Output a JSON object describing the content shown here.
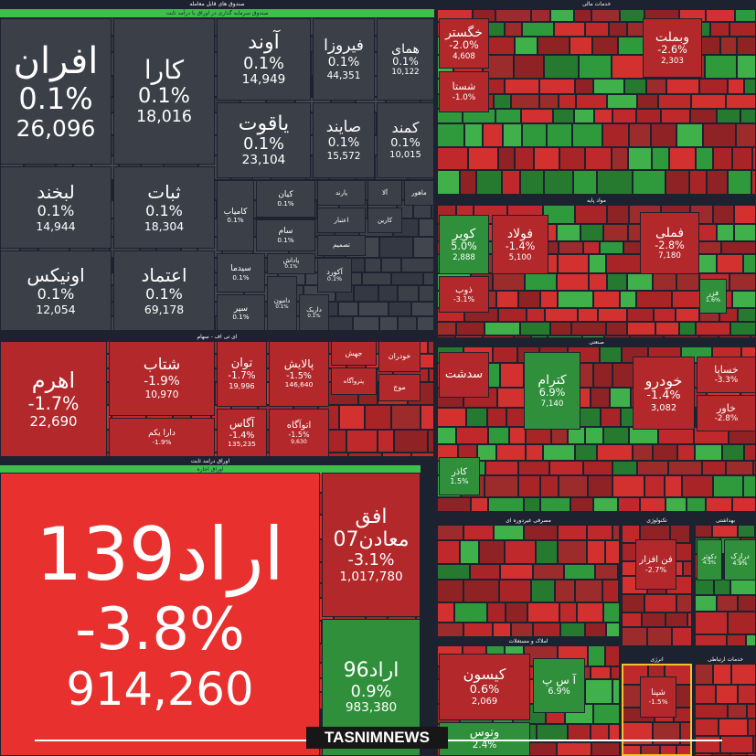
{
  "sections": [
    {
      "title": "صندوق های قابل معامله",
      "subtitle": "صندوق سرمایه گذاری در اوراق با درآمد ثابت",
      "tiles": [
        {
          "name": "افران",
          "change": "0.1%",
          "volume": "26,096"
        },
        {
          "name": "کارا",
          "change": "0.1%",
          "volume": "18,016"
        },
        {
          "name": "آوند",
          "change": "0.1%",
          "volume": "14,949"
        },
        {
          "name": "فیروزا",
          "change": "0.1%",
          "volume": "44,351"
        },
        {
          "name": "همای",
          "change": "0.1%",
          "volume": "10,122"
        },
        {
          "name": "یاقوت",
          "change": "0.1%",
          "volume": "23,104"
        },
        {
          "name": "صایند",
          "change": "0.1%",
          "volume": "15,572"
        },
        {
          "name": "کمند",
          "change": "0.1%",
          "volume": "10,015"
        },
        {
          "name": "لبخند",
          "change": "0.1%",
          "volume": "14,944"
        },
        {
          "name": "ثبات",
          "change": "0.1%",
          "volume": "18,304"
        },
        {
          "name": "اونیکس",
          "change": "0.1%",
          "volume": "12,054"
        },
        {
          "name": "اعتماد",
          "change": "0.1%",
          "volume": "69,178"
        },
        {
          "name": "کامیاب",
          "change": "0.1%"
        },
        {
          "name": "کیان",
          "change": "0.1%"
        },
        {
          "name": "سام",
          "change": "0.1%"
        },
        {
          "name": "سیدما",
          "change": "0.1%"
        },
        {
          "name": "پاداش",
          "change": "0.1%"
        },
        {
          "name": "آکورد",
          "change": "0.1%"
        },
        {
          "name": "سپر",
          "change": "0.1%"
        },
        {
          "name": "دامون",
          "change": "0.1%"
        },
        {
          "name": "داریک",
          "change": "0.1%"
        },
        {
          "name": "پارند"
        },
        {
          "name": "آلا"
        },
        {
          "name": "ماهور"
        },
        {
          "name": "اعتبار"
        },
        {
          "name": "کارین"
        },
        {
          "name": "تصمیم"
        }
      ]
    },
    {
      "title": "ای تی اف - سهام",
      "tiles": [
        {
          "name": "اهرم",
          "change": "-1.7%",
          "volume": "22,690"
        },
        {
          "name": "شتاب",
          "change": "-1.9%",
          "volume": "10,970"
        },
        {
          "name": "دارا یکم",
          "change": "-1.9%"
        },
        {
          "name": "توان",
          "change": "-1.7%",
          "volume": "19,996"
        },
        {
          "name": "پالایش",
          "change": "-1.5%",
          "volume": "146,640"
        },
        {
          "name": "آگاس",
          "change": "-1.4%",
          "volume": "135,235"
        },
        {
          "name": "اتوآگاه",
          "change": "-1.5%",
          "volume": "9,630"
        },
        {
          "name": "جهش"
        },
        {
          "name": "پتروآگاه"
        },
        {
          "name": "خودران"
        },
        {
          "name": "موج"
        }
      ]
    },
    {
      "title": "اوراق درامد ثابت",
      "subtitle": "اوراق اجاره",
      "tiles": [
        {
          "name": "اراد139",
          "change": "-3.8%",
          "volume": "914,260"
        },
        {
          "name": "افق معادن07",
          "change": "-3.1%",
          "volume": "1,017,780"
        },
        {
          "name": "اراد96",
          "change": "0.9%",
          "volume": "983,380"
        }
      ]
    },
    {
      "title": "خدمات مالی",
      "tiles": [
        {
          "name": "خگستر",
          "change": "-2.0%",
          "volume": "4,608"
        },
        {
          "name": "شستا",
          "change": "-1.0%"
        },
        {
          "name": "وبملت",
          "change": "-2.6%",
          "volume": "2,303"
        }
      ]
    },
    {
      "title": "مواد پایه",
      "tiles": [
        {
          "name": "کویر",
          "change": "5.0%",
          "volume": "2,888"
        },
        {
          "name": "فولاد",
          "change": "-1.4%",
          "volume": "5,100"
        },
        {
          "name": "ذوب",
          "change": "-3.1%"
        },
        {
          "name": "فملی",
          "change": "-2.8%",
          "volume": "7,180"
        },
        {
          "name": "فزر",
          "change": "1.6%"
        }
      ]
    },
    {
      "title": "صنعتی",
      "tiles": [
        {
          "name": "سدشت"
        },
        {
          "name": "کترام",
          "change": "6.9%",
          "volume": "7,140"
        },
        {
          "name": "کاذر",
          "change": "1.5%"
        },
        {
          "name": "خودرو",
          "change": "-1.4%",
          "volume": "3,082"
        },
        {
          "name": "خساپا",
          "change": "-3.3%"
        },
        {
          "name": "خاور",
          "change": "-2.8%"
        }
      ]
    },
    {
      "title": "مصرفی غیردوره ای",
      "tiles": []
    },
    {
      "title": "تکنولوژی",
      "tiles": [
        {
          "name": "فن افزار",
          "change": "-2.7%"
        }
      ]
    },
    {
      "title": "بهداشتی",
      "tiles": [
        {
          "name": "دکوثر",
          "change": "4.3%"
        },
        {
          "name": "درازک",
          "change": "4.9%"
        }
      ]
    },
    {
      "title": "املاک و مستغلات",
      "tiles": [
        {
          "name": "کیسون",
          "change": "0.6%",
          "volume": "2,069"
        },
        {
          "name": "آ س پ",
          "change": "6.9%"
        },
        {
          "name": "وتوس",
          "change": "2.4%"
        }
      ]
    },
    {
      "title": "انرژی",
      "tiles": [
        {
          "name": "شپنا",
          "change": "-1.5%"
        }
      ]
    },
    {
      "title": "خدمات ارتباطی",
      "tiles": []
    }
  ],
  "watermark": "TASNIMNEWS"
}
